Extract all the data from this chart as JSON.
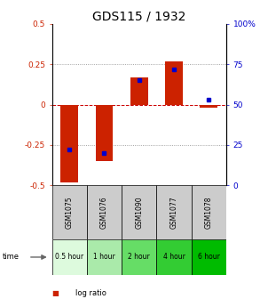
{
  "title": "GDS115 / 1932",
  "samples": [
    "GSM1075",
    "GSM1076",
    "GSM1090",
    "GSM1077",
    "GSM1078"
  ],
  "time_labels": [
    "0.5 hour",
    "1 hour",
    "2 hour",
    "4 hour",
    "6 hour"
  ],
  "log_ratios": [
    -0.48,
    -0.35,
    0.17,
    0.27,
    -0.02
  ],
  "percentiles": [
    22,
    20,
    65,
    72,
    53
  ],
  "ylim_left": [
    -0.5,
    0.5
  ],
  "ylim_right": [
    0,
    100
  ],
  "bar_width": 0.5,
  "bar_color": "#cc2200",
  "pct_color": "#0000cc",
  "zero_line_color": "#cc0000",
  "grid_dotted_color": "#888888",
  "background_color": "#ffffff",
  "time_colors": [
    "#ddfadd",
    "#aaeaaa",
    "#66dd66",
    "#33cc33",
    "#00bb00"
  ],
  "sample_bg": "#cccccc",
  "title_fontsize": 10,
  "tick_fontsize": 6.5,
  "sample_fontsize": 5.5,
  "time_fontsize": 5.5,
  "legend_fontsize": 6
}
